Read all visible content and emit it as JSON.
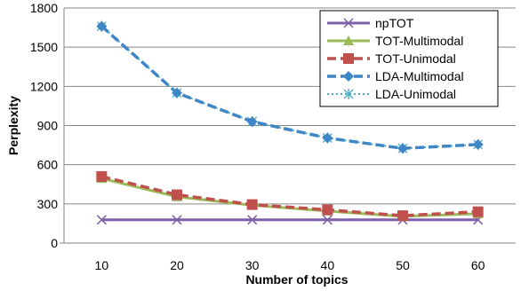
{
  "chart_data": {
    "type": "line",
    "xlabel": "Number of topics",
    "ylabel": "Perplexity",
    "x": [
      10,
      20,
      30,
      40,
      50,
      60
    ],
    "xlim": [
      5,
      65
    ],
    "ylim": [
      0,
      1800
    ],
    "yticks": [
      0,
      300,
      600,
      900,
      1200,
      1500,
      1800
    ],
    "grid": "horizontal",
    "legend": "top-right",
    "series": [
      {
        "name": "npTOT",
        "values": [
          178,
          178,
          178,
          178,
          178,
          178
        ],
        "color": "#7f5fa8",
        "marker": "x",
        "dash": "solid"
      },
      {
        "name": "TOT-Multimodal",
        "values": [
          495,
          355,
          290,
          245,
          205,
          225
        ],
        "color": "#9bbb59",
        "marker": "triangle",
        "dash": "solid"
      },
      {
        "name": "TOT-Unimodal",
        "values": [
          510,
          370,
          295,
          255,
          210,
          240
        ],
        "color": "#c0504d",
        "marker": "square",
        "dash": "dashed"
      },
      {
        "name": "LDA-Multimodal",
        "values": [
          1660,
          1150,
          930,
          805,
          725,
          755
        ],
        "color": "#3f86c6",
        "marker": "diamond",
        "dash": "dashed"
      },
      {
        "name": "LDA-Unimodal",
        "values": [
          1660,
          1150,
          930,
          805,
          725,
          755
        ],
        "color": "#4bacc6",
        "marker": "asterisk",
        "dash": "dotted"
      }
    ]
  }
}
